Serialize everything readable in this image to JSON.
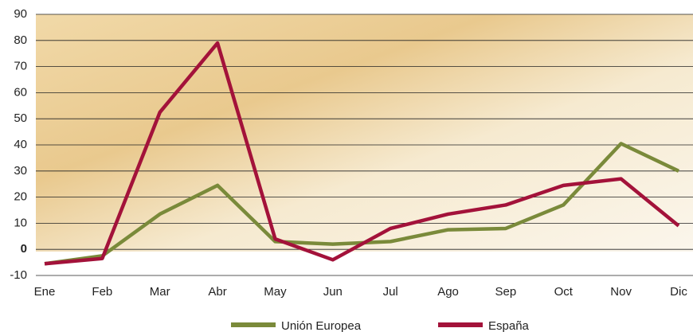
{
  "chart_data": {
    "type": "line",
    "categories": [
      "Ene",
      "Feb",
      "Mar",
      "Abr",
      "May",
      "Jun",
      "Jul",
      "Ago",
      "Sep",
      "Oct",
      "Nov",
      "Dic"
    ],
    "series": [
      {
        "name": "Unión Europea",
        "color": "#7a8a3a",
        "values": [
          -5.5,
          -2.5,
          13.5,
          24.5,
          3,
          2,
          3,
          7.5,
          8,
          17,
          40.5,
          30
        ]
      },
      {
        "name": "España",
        "color": "#a3123a",
        "values": [
          -5.5,
          -3.5,
          52.5,
          79,
          4,
          -4,
          8,
          13.5,
          17,
          24.5,
          27,
          9
        ]
      }
    ],
    "ylim": [
      -10,
      90
    ],
    "yticks": [
      -10,
      0,
      10,
      20,
      30,
      40,
      50,
      60,
      70,
      80,
      90
    ],
    "grid": true,
    "legend": "bottom"
  }
}
